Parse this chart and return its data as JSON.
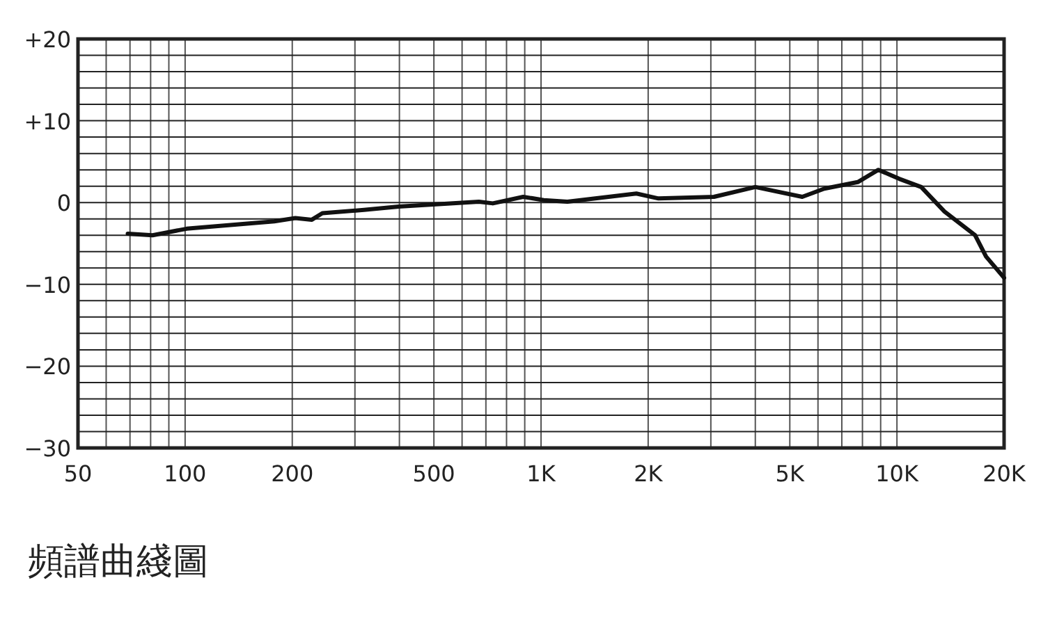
{
  "chart_data": {
    "type": "line",
    "title": "頻譜曲綫圖",
    "log": "x",
    "grid": true,
    "marker": "none",
    "line_style": "solid",
    "xlim": [
      50,
      20000
    ],
    "xticks": [
      50,
      {
        "value": 60,
        "label": null
      },
      {
        "value": 70,
        "label": null
      },
      {
        "value": 80,
        "label": null
      },
      {
        "value": 90,
        "label": null
      },
      100,
      200,
      {
        "value": 300,
        "label": null
      },
      {
        "value": 400,
        "label": null
      },
      500,
      {
        "value": 600,
        "label": null
      },
      {
        "value": 700,
        "label": null
      },
      {
        "value": 800,
        "label": null
      },
      {
        "value": 900,
        "label": null
      },
      {
        "value": 1000,
        "label": "1K"
      },
      {
        "value": 2000,
        "label": "2K"
      },
      {
        "value": 3000,
        "label": null
      },
      {
        "value": 4000,
        "label": null
      },
      {
        "value": 5000,
        "label": "5K"
      },
      {
        "value": 6000,
        "label": null
      },
      {
        "value": 7000,
        "label": null
      },
      {
        "value": 8000,
        "label": null
      },
      {
        "value": 9000,
        "label": null
      },
      {
        "value": 10000,
        "label": "10K"
      },
      {
        "value": 20000,
        "label": "20K"
      }
    ],
    "ylim": [
      -30,
      20
    ],
    "yticks": [
      {
        "value": -30,
        "label": "−30"
      },
      {
        "value": -28,
        "label": null
      },
      {
        "value": -26,
        "label": null
      },
      {
        "value": -24,
        "label": null
      },
      {
        "value": -22,
        "label": null
      },
      {
        "value": -20,
        "label": "−20"
      },
      {
        "value": -18,
        "label": null
      },
      {
        "value": -16,
        "label": null
      },
      {
        "value": -14,
        "label": null
      },
      {
        "value": -12,
        "label": null
      },
      {
        "value": -10,
        "label": "−10"
      },
      {
        "value": -8,
        "label": null
      },
      {
        "value": -6,
        "label": null
      },
      {
        "value": -4,
        "label": null
      },
      {
        "value": -2,
        "label": null
      },
      0,
      {
        "value": 2,
        "label": null
      },
      {
        "value": 4,
        "label": null
      },
      {
        "value": 6,
        "label": null
      },
      {
        "value": 8,
        "label": null
      },
      {
        "value": 10,
        "label": "+10"
      },
      {
        "value": 12,
        "label": null
      },
      {
        "value": 14,
        "label": null
      },
      {
        "value": 16,
        "label": null
      },
      {
        "value": 18,
        "label": null
      },
      {
        "value": 20,
        "label": "+20"
      }
    ],
    "series": [
      {
        "color": "#111111",
        "x": [
          69,
          81,
          101,
          178,
          204,
          227,
          243,
          318,
          398,
          669,
          732,
          891,
          1018,
          1186,
          1853,
          2138,
          3060,
          4000,
          5420,
          6250,
          7760,
          8870,
          10150,
          11700,
          13600,
          16580,
          17800,
          20000
        ],
        "values": [
          -3.8,
          -4,
          -3.2,
          -2.3,
          -1.9,
          -2.1,
          -1.3,
          -0.9,
          -0.5,
          0.1,
          -0.1,
          0.7,
          0.3,
          0.1,
          1.1,
          0.5,
          0.7,
          1.9,
          0.7,
          1.7,
          2.5,
          4,
          2.9,
          1.9,
          -1.1,
          -4,
          -6.6,
          -9.2
        ]
      }
    ]
  }
}
